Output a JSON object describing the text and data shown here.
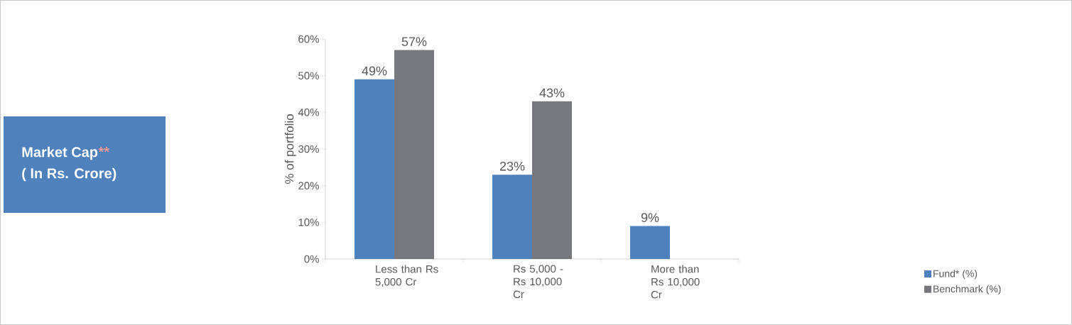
{
  "chart_data": {
    "type": "bar",
    "title": "Market Cap",
    "subtitle": "( In Rs. Crore)",
    "annotations": [
      "**"
    ],
    "ylabel": "% of portfolio",
    "categories": [
      "Less than Rs 5,000 Cr",
      "Rs 5,000 - Rs 10,000 Cr",
      "More than Rs 10,000 Cr"
    ],
    "series": [
      {
        "name": "Fund* (%)",
        "color": "#4f81bd",
        "values": [
          49,
          23,
          9
        ],
        "value_labels": [
          "49%",
          "23%",
          "9%"
        ]
      },
      {
        "name": "Benchmark (%)",
        "color": "#77787b",
        "values": [
          57,
          43,
          null
        ],
        "value_labels": [
          "57%",
          "43%",
          null
        ]
      }
    ],
    "ylim": [
      0,
      60
    ],
    "yticks": [
      {
        "value": 0,
        "label": "0%"
      },
      {
        "value": 10,
        "label": "10%"
      },
      {
        "value": 20,
        "label": "20%"
      },
      {
        "value": 30,
        "label": "30%"
      },
      {
        "value": 40,
        "label": "40%"
      },
      {
        "value": 50,
        "label": "50%"
      },
      {
        "value": 60,
        "label": "60%"
      }
    ],
    "legend": "bottom right",
    "grid": false
  }
}
